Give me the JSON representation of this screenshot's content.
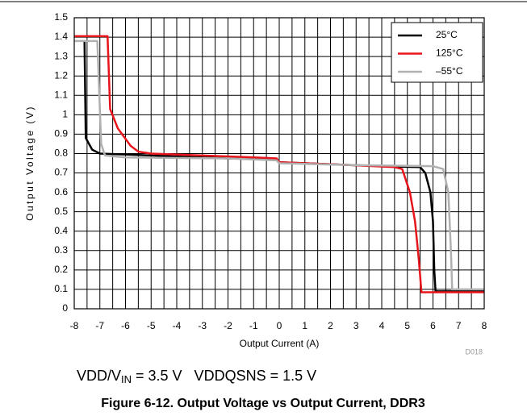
{
  "chart_data": {
    "type": "line",
    "x_label": "Output Current (A)",
    "y_label": "Output Voltage (V)",
    "code": "D018",
    "subtitle": {
      "parts": [
        "VDD/V",
        "IN",
        " = 3.5 V   VDDQSNS = 1.5 V"
      ]
    },
    "caption": "Figure 6-12. Output Voltage vs Output Current, DDR3",
    "xlim": [
      -8,
      8
    ],
    "ylim": [
      0,
      1.5
    ],
    "xticks": [
      -8,
      -7,
      -6,
      -5,
      -4,
      -3,
      -2,
      -1,
      0,
      1,
      2,
      3,
      4,
      5,
      6,
      7,
      8
    ],
    "x_minor_ticks": [
      -7.5,
      -6.5,
      -5.5,
      -4.5,
      -3.5,
      -2.5,
      -1.5,
      -0.5,
      0.5,
      1.5,
      2.5,
      3.5,
      4.5,
      5.5,
      6.5,
      7.5
    ],
    "yticks": [
      0,
      0.1,
      0.2,
      0.3,
      0.4,
      0.5,
      0.6,
      0.7,
      0.8,
      0.9,
      1,
      1.1,
      1.2,
      1.3,
      1.4,
      1.5
    ],
    "grid": true,
    "legend": "top-right",
    "series": [
      {
        "name": "25°C",
        "color": "#000000",
        "x": [
          -7.6,
          -7.55,
          -7.3,
          -7,
          -6,
          -4,
          -2,
          -0.1,
          0,
          2,
          4,
          5.5,
          5.7,
          5.9,
          6.0,
          6.05,
          6.1,
          8
        ],
        "values": [
          1.38,
          0.88,
          0.82,
          0.8,
          0.795,
          0.785,
          0.775,
          0.77,
          0.755,
          0.745,
          0.735,
          0.73,
          0.7,
          0.6,
          0.45,
          0.2,
          0.09,
          0.09
        ]
      },
      {
        "name": "125°C",
        "color": "#e8141b",
        "x": [
          -8,
          -6.7,
          -6.6,
          -6.3,
          -5.8,
          -5.5,
          -5,
          -3,
          -1,
          -0.1,
          0,
          2,
          4.5,
          4.8,
          5.1,
          5.3,
          5.45,
          5.55,
          8
        ],
        "values": [
          1.405,
          1.405,
          1.03,
          0.93,
          0.84,
          0.81,
          0.8,
          0.79,
          0.78,
          0.775,
          0.755,
          0.745,
          0.73,
          0.72,
          0.6,
          0.45,
          0.25,
          0.085,
          0.085
        ]
      },
      {
        "name": "–55°C",
        "color": "#b0b0b0",
        "x": [
          -8,
          -7.1,
          -6.95,
          -6.8,
          -6,
          -2,
          -0.1,
          0,
          3,
          6,
          6.4,
          6.6,
          6.7,
          6.75,
          8
        ],
        "values": [
          1.38,
          1.38,
          0.85,
          0.79,
          0.78,
          0.775,
          0.765,
          0.75,
          0.74,
          0.735,
          0.72,
          0.6,
          0.3,
          0.1,
          0.1
        ]
      }
    ]
  }
}
